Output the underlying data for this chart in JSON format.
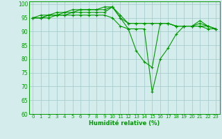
{
  "xlabel": "Humidité relative (%)",
  "bg_color": "#d4edec",
  "grid_color": "#a0c8c8",
  "line_color": "#009900",
  "xlim_min": -0.5,
  "xlim_max": 23.5,
  "ylim_min": 60,
  "ylim_max": 101,
  "yticks": [
    60,
    65,
    70,
    75,
    80,
    85,
    90,
    95,
    100
  ],
  "xticks": [
    0,
    1,
    2,
    3,
    4,
    5,
    6,
    7,
    8,
    9,
    10,
    11,
    12,
    13,
    14,
    15,
    16,
    17,
    18,
    19,
    20,
    21,
    22,
    23
  ],
  "series": [
    [
      95,
      95,
      96,
      96,
      96,
      97,
      97,
      97,
      97,
      97,
      99,
      95,
      91,
      83,
      79,
      77,
      93,
      93,
      92,
      92,
      92,
      93,
      92,
      91
    ],
    [
      95,
      96,
      96,
      97,
      97,
      98,
      98,
      98,
      98,
      98,
      99,
      96,
      93,
      93,
      93,
      93,
      93,
      93,
      92,
      92,
      92,
      94,
      92,
      91
    ],
    [
      95,
      95,
      96,
      96,
      97,
      97,
      98,
      98,
      98,
      99,
      99,
      95,
      93,
      93,
      93,
      93,
      93,
      93,
      92,
      92,
      92,
      92,
      92,
      91
    ],
    [
      95,
      95,
      95,
      96,
      96,
      96,
      96,
      96,
      96,
      96,
      95,
      92,
      91,
      91,
      91,
      68,
      80,
      84,
      89,
      92,
      92,
      92,
      91,
      91
    ]
  ],
  "tick_fontsize": 5,
  "xlabel_fontsize": 6,
  "marker_size": 2.5,
  "line_width": 0.8
}
